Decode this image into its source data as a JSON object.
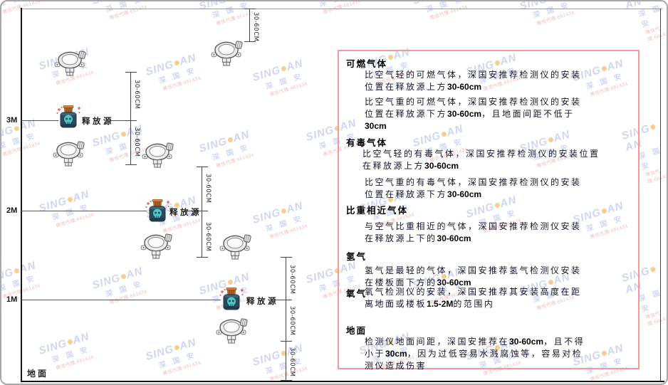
{
  "watermark": {
    "brand_left": "SING",
    "brand_right": "AN",
    "brand_sub": "深 国 安",
    "agent_line": "微信代理:661434"
  },
  "diagram": {
    "axis_labels": {
      "m3": "3M",
      "m2": "2M",
      "m1": "1M",
      "ground": "地面"
    },
    "release_source_label": "释放源",
    "dimension_label": "30-60CM"
  },
  "panel": {
    "sections": [
      {
        "heading": "可燃气体",
        "paragraphs": [
          [
            "比空气轻的可燃气体，深国安推荐检测仪的安装",
            "位置在释放源上方30-60cm"
          ],
          [
            "比空气重的可燃气体，深国安推荐检测仪的安装",
            "位置在释放源下方30-60cm，且地面间距不低于",
            "30cm"
          ]
        ]
      },
      {
        "heading": "有毒气体",
        "paragraphs": [
          [
            "比空气轻的有毒气体，深国安推荐检测仪的安装位置",
            "在释放源上方30-60cm"
          ],
          [
            "比空气重的有毒气体，深国安推荐检测仪的安装",
            "位置在释放源下方30-60cm"
          ]
        ]
      },
      {
        "heading": "比重相近气体",
        "paragraphs": [
          [
            "与空气比重相近的气体，深国安推荐检测仪安装",
            "在释放源上下的30-60cm"
          ]
        ]
      },
      {
        "heading": "氢气",
        "paragraphs": [
          [
            "氢气是最轻的气体，深国安推荐氢气检测仪安装",
            "在楼板面下方的30-60cm"
          ]
        ]
      },
      {
        "heading": "氧气",
        "paragraphs": [
          [
            "氧气检测仪的安装，深国安推荐其安装高度在距",
            "离地面或楼板1.5-2M的范围内"
          ]
        ]
      },
      {
        "heading": "地面",
        "paragraphs": [
          [
            "检测仪地面间距，深国安推荐在30-60cm，且不得",
            "小于30cm，因为过低容易水溅腐蚀等，容易对检",
            "测仪造成伤害"
          ]
        ]
      }
    ]
  }
}
